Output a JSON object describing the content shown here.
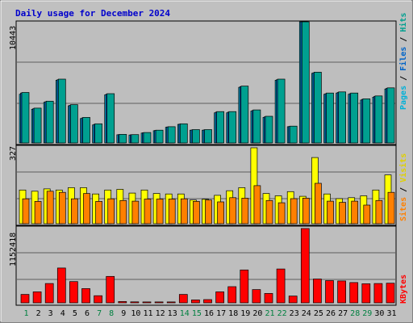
{
  "chart_data": {
    "type": "bar",
    "title": "Daily usage for December 2024",
    "colors": {
      "background": "#c0c0c0",
      "plot": "#bebebe",
      "title": "#0000cc",
      "weekday_label": "#000000",
      "weekend_label": "#008040",
      "slash": "#000000"
    },
    "categories": [
      "1",
      "2",
      "3",
      "4",
      "5",
      "6",
      "7",
      "8",
      "9",
      "10",
      "11",
      "12",
      "13",
      "14",
      "15",
      "16",
      "17",
      "18",
      "19",
      "20",
      "21",
      "22",
      "23",
      "24",
      "25",
      "26",
      "27",
      "28",
      "29",
      "30",
      "31"
    ],
    "weekend_days": [
      "1",
      "7",
      "8",
      "14",
      "15",
      "21",
      "22",
      "28",
      "29"
    ],
    "panels": [
      {
        "ymax": 10443,
        "ymax_label": "10443",
        "series": [
          {
            "name": "Pages",
            "color": "#00b0d8",
            "values": [
              4200,
              2900,
              3500,
              5400,
              3200,
              2100,
              1550,
              4150,
              700,
              680,
              850,
              1050,
              1350,
              1600,
              1100,
              1100,
              2600,
              2600,
              4800,
              2750,
              2200,
              5400,
              1400,
              10443,
              6000,
              4200,
              4300,
              4200,
              3700,
              3950,
              4650
            ]
          },
          {
            "name": "Files",
            "color": "#0064c8",
            "values": [
              4300,
              2950,
              3550,
              5450,
              3250,
              2150,
              1600,
              4200,
              720,
              700,
              880,
              1080,
              1380,
              1620,
              1120,
              1120,
              2650,
              2650,
              4850,
              2800,
              2250,
              5450,
              1420,
              10443,
              6050,
              4250,
              4350,
              4250,
              3750,
              4000,
              4700
            ]
          },
          {
            "name": "Hits",
            "color": "#00a090",
            "values": [
              4350,
              3000,
              3600,
              5500,
              3300,
              2200,
              1650,
              4250,
              740,
              720,
              900,
              1100,
              1400,
              1650,
              1150,
              1150,
              2700,
              2700,
              4900,
              2850,
              2300,
              5500,
              1450,
              10443,
              6100,
              4300,
              4400,
              4300,
              3800,
              4050,
              4750
            ]
          }
        ]
      },
      {
        "ymax": 327,
        "ymax_label": "327",
        "series": [
          {
            "name": "Visits",
            "color": "#ffff00",
            "values": [
              145,
              140,
              150,
              145,
              155,
              155,
              128,
              145,
              148,
              132,
              145,
              130,
              128,
              128,
              102,
              105,
              122,
              142,
              155,
              327,
              130,
              120,
              138,
              118,
              285,
              128,
              108,
              112,
              120,
              145,
              210
            ]
          },
          {
            "name": "Sites",
            "color": "#ff8000",
            "values": [
              107,
              96,
              140,
              135,
              107,
              130,
              96,
              107,
              100,
              97,
              106,
              106,
              106,
              107,
              96,
              102,
              94,
              112,
              110,
              164,
              100,
              90,
              108,
              110,
              174,
              97,
              92,
              97,
              80,
              100,
              135
            ]
          }
        ]
      },
      {
        "ymax": 1152418,
        "ymax_label": "1152418",
        "series": [
          {
            "name": "KBytes",
            "color": "#ff0000",
            "values": [
              130000,
              170000,
              300000,
              540000,
              330000,
              220000,
              110000,
              410000,
              20000,
              15000,
              14000,
              14000,
              14000,
              130000,
              45000,
              50000,
              170000,
              250000,
              510000,
              205000,
              145000,
              525000,
              105000,
              1152418,
              370000,
              345000,
              340000,
              315000,
              295000,
              300000,
              305000
            ]
          }
        ]
      }
    ],
    "labels_left": [
      {
        "text": "Pages",
        "color": "#00b0d8"
      },
      {
        "text": "Files",
        "color": "#0064c8"
      },
      {
        "text": "Hits",
        "color": "#00a090"
      }
    ],
    "labels_mid": [
      {
        "text": "Sites",
        "color": "#ff8000"
      },
      {
        "text": "Visits",
        "color": "#e0d000"
      }
    ],
    "labels_bottom": [
      {
        "text": "KBytes",
        "color": "#ff0000"
      }
    ]
  }
}
